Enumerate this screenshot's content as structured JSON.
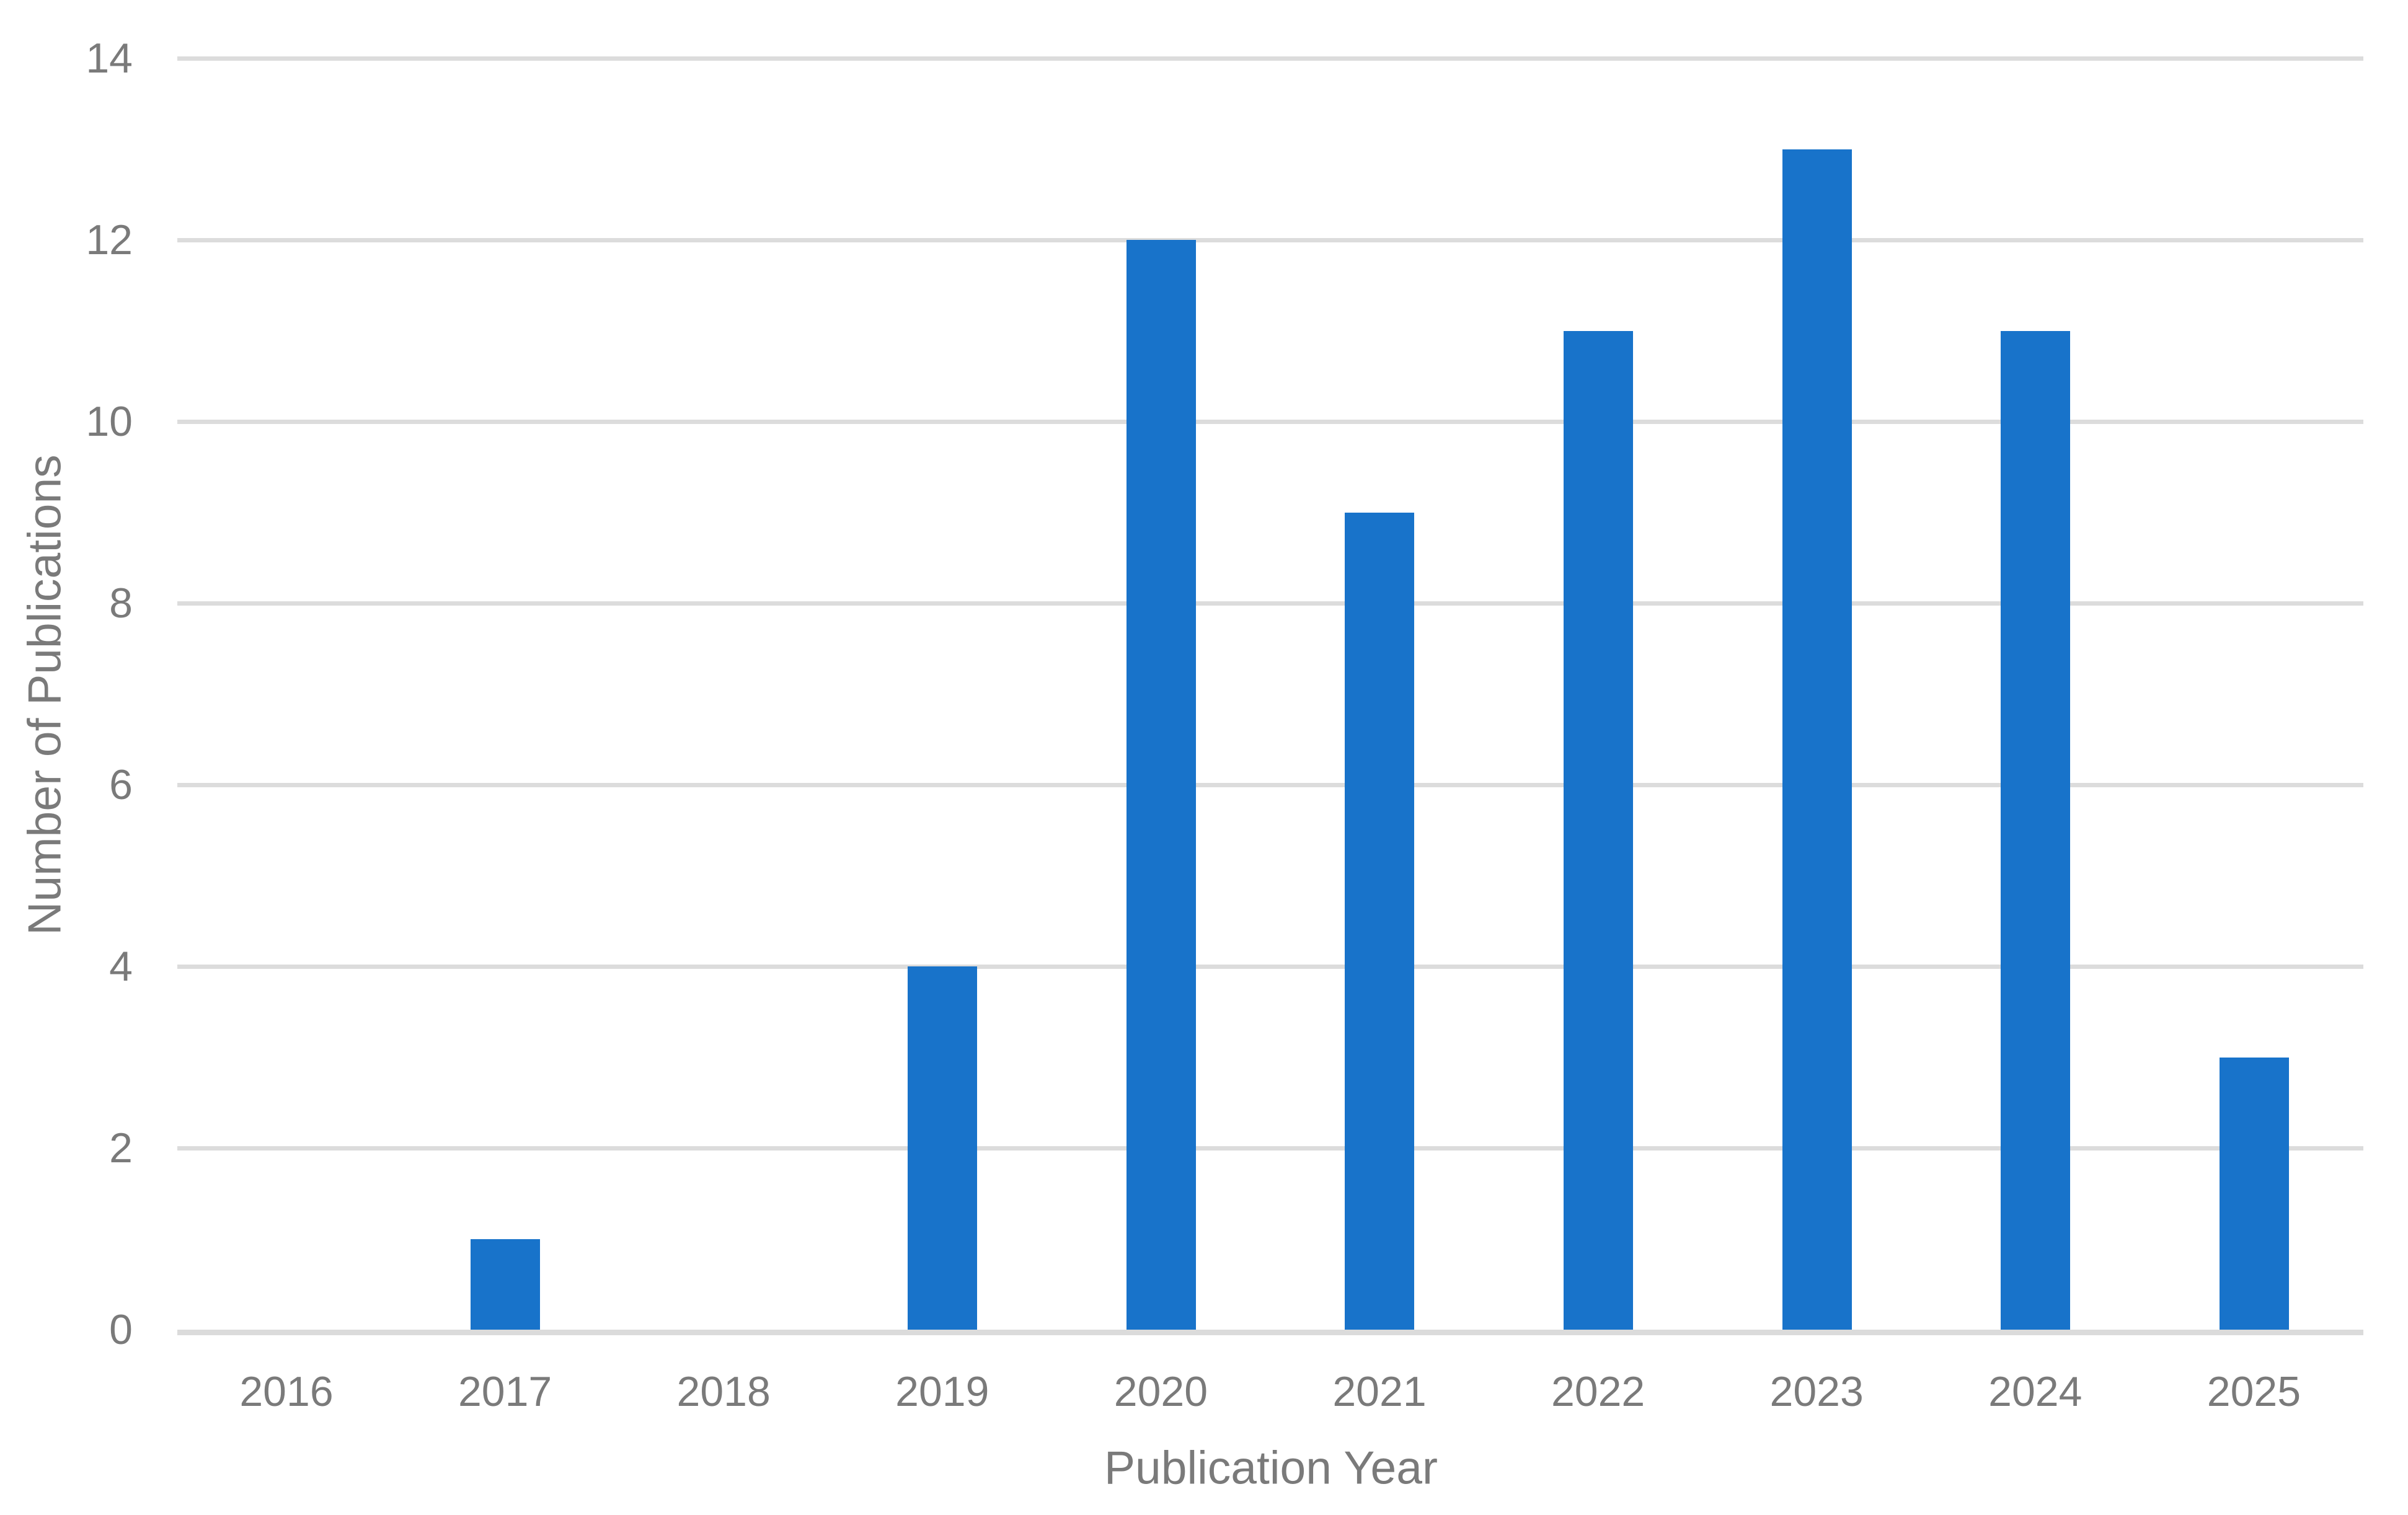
{
  "chart_data": {
    "type": "bar",
    "title": "",
    "categories": [
      "2016",
      "2017",
      "2018",
      "2019",
      "2020",
      "2021",
      "2022",
      "2023",
      "2024",
      "2025"
    ],
    "values": [
      0,
      1,
      0,
      4,
      12,
      9,
      11,
      13,
      11,
      3
    ],
    "xlabel": "Publication Year",
    "ylabel": "Number of Publications",
    "ylim": [
      0,
      14
    ],
    "yticks": [
      0,
      2,
      4,
      6,
      8,
      10,
      12,
      14
    ],
    "grid": "horizontal",
    "legend": "none",
    "colors": {
      "bar": "#1873CA",
      "gridline": "#DCDCDC",
      "axis_line": "#DBDBDB",
      "text": "#7A7A7A",
      "background": "#FFFFFF"
    }
  }
}
